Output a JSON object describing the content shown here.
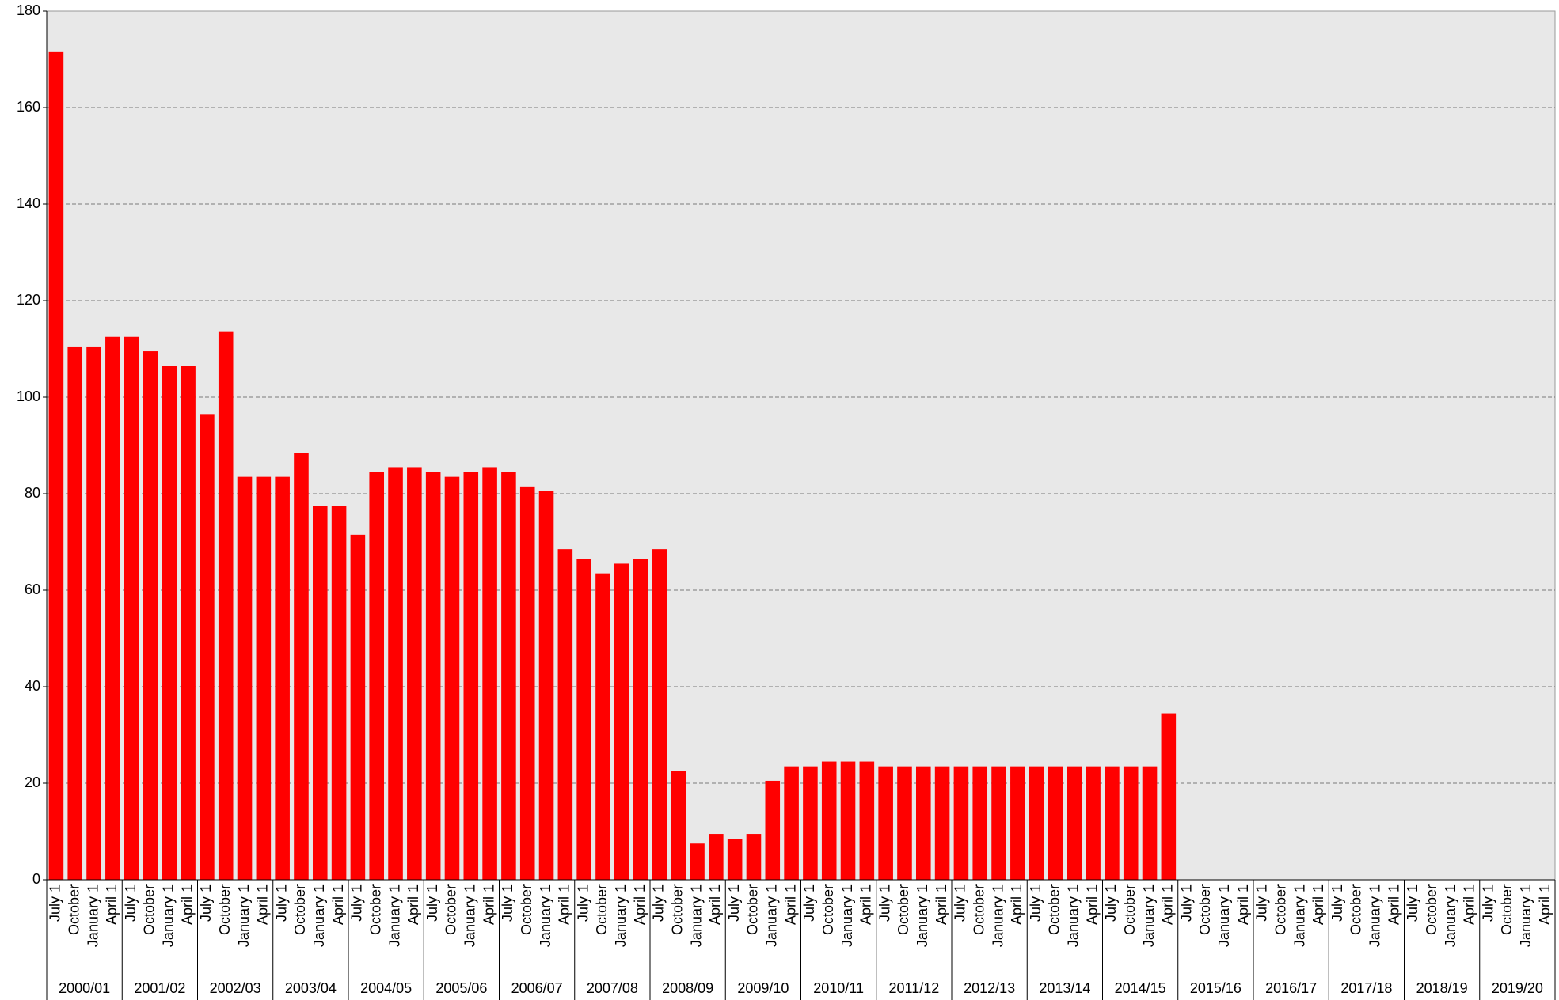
{
  "chart_data": {
    "type": "bar",
    "categories": [
      "July 1",
      "October",
      "January 1",
      "April 1",
      "July 1",
      "October",
      "January 1",
      "April 1",
      "July 1",
      "October",
      "January 1",
      "April 1",
      "July 1",
      "October",
      "January 1",
      "April 1",
      "July 1",
      "October",
      "January 1",
      "April 1",
      "July 1",
      "October",
      "January 1",
      "April 1",
      "July 1",
      "October",
      "January 1",
      "April 1",
      "July 1",
      "October",
      "January 1",
      "April 1",
      "July 1",
      "October",
      "January 1",
      "April 1",
      "July 1",
      "October",
      "January 1",
      "April 1",
      "July 1",
      "October",
      "January 1",
      "April 1",
      "July 1",
      "October",
      "January 1",
      "April 1",
      "July 1",
      "October",
      "January 1",
      "April 1",
      "July 1",
      "October",
      "January 1",
      "April 1",
      "July 1",
      "October",
      "January 1",
      "April 1",
      "July 1",
      "October",
      "January 1",
      "April 1",
      "July 1",
      "October",
      "January 1",
      "April 1",
      "July 1",
      "October",
      "January 1",
      "April 1",
      "July 1",
      "October",
      "January 1",
      "April 1",
      "July 1",
      "October",
      "January 1",
      "April 1"
    ],
    "groups": [
      "2000/01",
      "2001/02",
      "2002/03",
      "2003/04",
      "2004/05",
      "2005/06",
      "2006/07",
      "2007/08",
      "2008/09",
      "2009/10",
      "2010/11",
      "2011/12",
      "2012/13",
      "2013/14",
      "2014/15",
      "2015/16",
      "2016/17",
      "2017/18",
      "2018/19",
      "2019/20"
    ],
    "values": [
      171.5,
      110.5,
      110.5,
      112.5,
      112.5,
      109.5,
      106.5,
      106.5,
      96.5,
      113.5,
      83.5,
      83.5,
      83.5,
      88.5,
      77.5,
      77.5,
      71.5,
      84.5,
      85.5,
      85.5,
      84.5,
      83.5,
      84.5,
      85.5,
      84.5,
      81.5,
      80.5,
      68.5,
      66.5,
      63.5,
      65.5,
      66.5,
      68.5,
      22.5,
      7.5,
      9.5,
      8.5,
      9.5,
      20.5,
      23.5,
      23.5,
      24.5,
      24.5,
      24.5,
      23.5,
      23.5,
      23.5,
      23.5,
      23.5,
      23.5,
      23.5,
      23.5,
      23.5,
      23.5,
      23.5,
      23.5,
      23.5,
      23.5,
      23.5,
      34.5,
      null,
      null,
      null,
      null,
      null,
      null,
      null,
      null,
      null,
      null,
      null,
      null,
      null,
      null,
      null,
      null,
      null,
      null,
      null,
      null
    ],
    "color": "#ff0000",
    "ylim": [
      0,
      180
    ],
    "yticks": [
      0,
      20,
      40,
      60,
      80,
      100,
      120,
      140,
      160,
      180
    ],
    "grid": true
  }
}
